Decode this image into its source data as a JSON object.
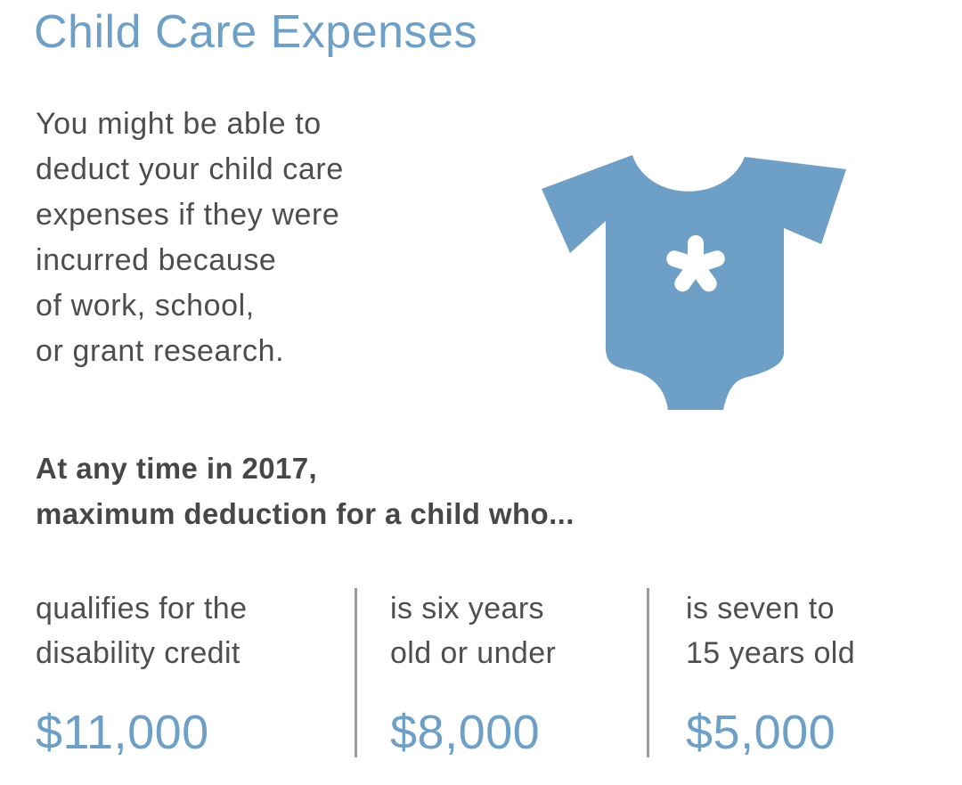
{
  "title": "Child Care Expenses",
  "intro_lines": [
    "You might be able to",
    "deduct your child care",
    "expenses if they were",
    "incurred because",
    "of work, school,",
    "or grant research."
  ],
  "icon": "baby-onesie-icon",
  "heading_lines": [
    "At any time in 2017,",
    "maximum deduction for a child who..."
  ],
  "columns": [
    {
      "desc_lines": [
        "qualifies for the",
        "disability credit"
      ],
      "amount": "$11,000"
    },
    {
      "desc_lines": [
        "is six years",
        "old or under"
      ],
      "amount": "$8,000"
    },
    {
      "desc_lines": [
        "is seven to",
        "15 years old"
      ],
      "amount": "$5,000"
    }
  ],
  "colors": {
    "accent": "#6e9fc6",
    "text": "#4e4e4e",
    "divider": "#9a9a9a"
  }
}
